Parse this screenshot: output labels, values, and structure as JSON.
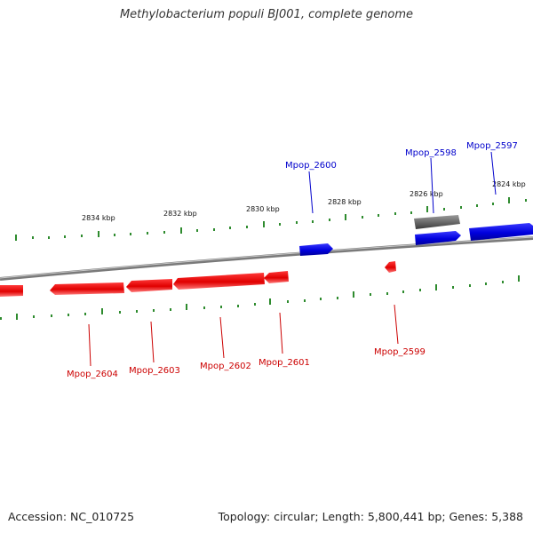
{
  "title": "Methylobacterium populi BJ001, complete genome",
  "accession": "Accession: NC_010725",
  "summary": "Topology: circular; Length: 5,800,441 bp; Genes: 5,388",
  "colors": {
    "forward": "#0000dd",
    "reverse": "#dd0000",
    "other": "#666666",
    "backbone": "#808080",
    "ticks": "#2e8b2e"
  },
  "tick_labels": [
    "2834 kbp",
    "2832 kbp",
    "2830 kbp",
    "2828 kbp",
    "2826 kbp",
    "2824 kbp"
  ],
  "genes_forward": [
    "Mpop_2600",
    "Mpop_2598",
    "Mpop_2597"
  ],
  "genes_reverse": [
    "Mpop_2604",
    "Mpop_2603",
    "Mpop_2602",
    "Mpop_2601",
    "Mpop_2599"
  ]
}
